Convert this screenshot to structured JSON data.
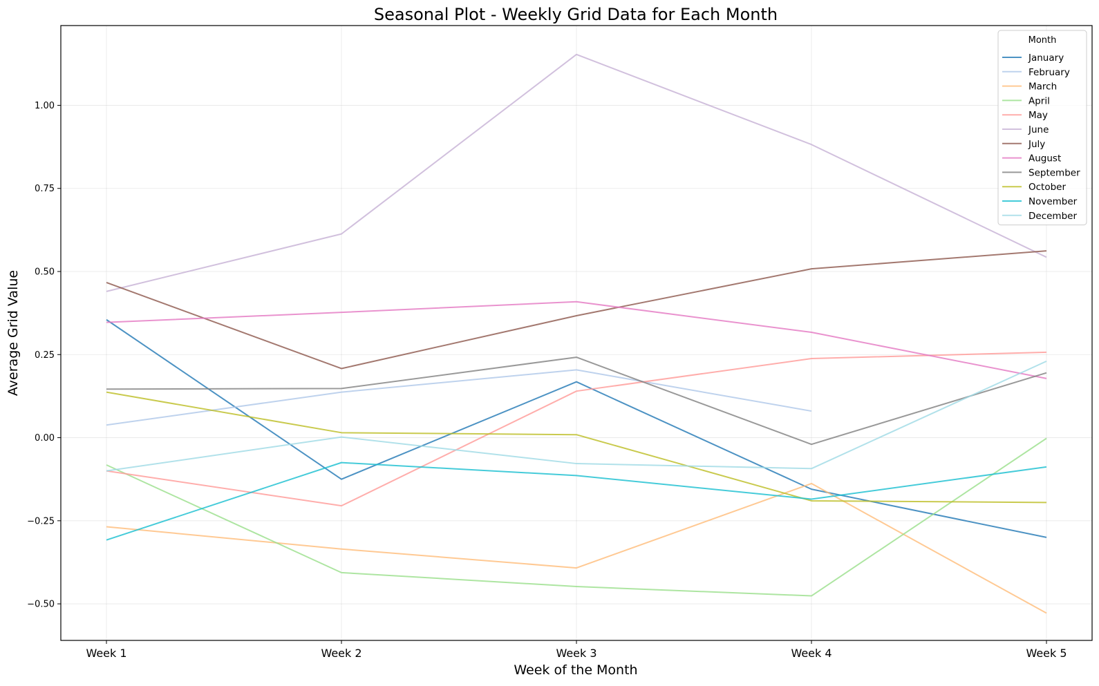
{
  "chart_data": {
    "type": "line",
    "title": "Seasonal Plot - Weekly Grid Data for Each Month",
    "xlabel": "Week of the Month",
    "ylabel": "Average Grid Value",
    "categories": [
      "Week 1",
      "Week 2",
      "Week 3",
      "Week 4",
      "Week 5"
    ],
    "ylim": [
      -0.61,
      1.24
    ],
    "yticks": [
      -0.5,
      -0.25,
      0.0,
      0.25,
      0.5,
      0.75,
      1.0
    ],
    "ytick_labels": [
      "−0.50",
      "−0.25",
      "0.00",
      "0.25",
      "0.50",
      "0.75",
      "1.00"
    ],
    "grid": true,
    "legend": {
      "title": "Month",
      "placement": "top-right"
    },
    "series": [
      {
        "name": "January",
        "color": "#1f77b4",
        "values": [
          0.355,
          -0.125,
          0.168,
          -0.155,
          -0.3
        ]
      },
      {
        "name": "February",
        "color": "#aec7e8",
        "values": [
          0.038,
          0.137,
          0.204,
          0.08,
          null
        ]
      },
      {
        "name": "March",
        "color": "#ffbb78",
        "values": [
          -0.268,
          -0.335,
          -0.392,
          -0.138,
          -0.528
        ]
      },
      {
        "name": "April",
        "color": "#98df8a",
        "values": [
          -0.082,
          -0.406,
          -0.448,
          -0.476,
          -0.002
        ]
      },
      {
        "name": "May",
        "color": "#ff9896",
        "values": [
          -0.1,
          -0.205,
          0.14,
          0.238,
          0.257
        ]
      },
      {
        "name": "June",
        "color": "#c5b0d5",
        "values": [
          0.44,
          0.613,
          1.153,
          0.882,
          0.543
        ]
      },
      {
        "name": "July",
        "color": "#8c564b",
        "values": [
          0.467,
          0.208,
          0.367,
          0.508,
          0.562
        ]
      },
      {
        "name": "August",
        "color": "#e377c2",
        "values": [
          0.347,
          0.377,
          0.409,
          0.317,
          0.178
        ]
      },
      {
        "name": "September",
        "color": "#7f7f7f",
        "values": [
          0.146,
          0.148,
          0.242,
          -0.02,
          0.195
        ]
      },
      {
        "name": "October",
        "color": "#bcbd22",
        "values": [
          0.137,
          0.015,
          0.009,
          -0.19,
          -0.195
        ]
      },
      {
        "name": "November",
        "color": "#17becf",
        "values": [
          -0.308,
          -0.075,
          -0.114,
          -0.185,
          -0.088
        ]
      },
      {
        "name": "December",
        "color": "#9edae5",
        "values": [
          -0.1,
          0.002,
          -0.078,
          -0.093,
          0.23
        ]
      }
    ]
  }
}
